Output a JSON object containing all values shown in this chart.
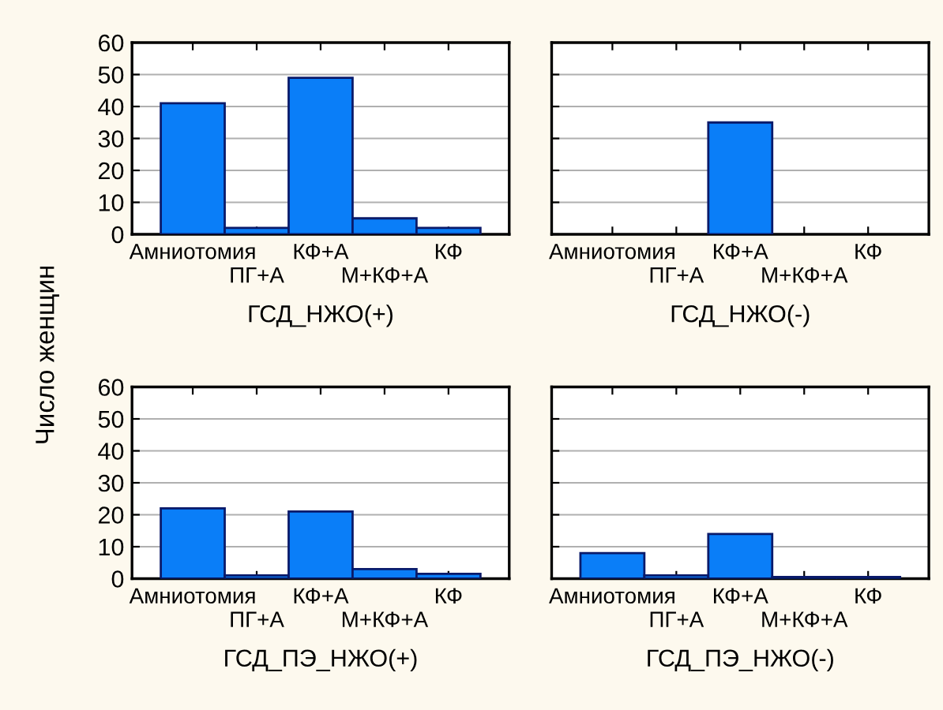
{
  "chart_data": [
    {
      "type": "bar",
      "categories": [
        "Амниотомия",
        "ПГ+А",
        "КФ+А",
        "М+КФ+А",
        "КФ"
      ],
      "values": [
        41,
        2,
        49,
        5,
        2
      ],
      "color": "#0a7ef8",
      "xlabel": "ГСД_НЖО(+)",
      "ylabel": "Число женщин",
      "ylim": [
        0,
        60
      ],
      "yticks": [
        0,
        10,
        20,
        30,
        40,
        50,
        60
      ],
      "grid": "y"
    },
    {
      "type": "bar",
      "categories": [
        "Амниотомия",
        "ПГ+А",
        "КФ+А",
        "М+КФ+А",
        "КФ"
      ],
      "values": [
        0,
        0,
        35,
        0,
        0
      ],
      "color": "#0a7ef8",
      "xlabel": "ГСД_НЖО(-)",
      "ylim": [
        0,
        60
      ],
      "yticks": [
        0,
        10,
        20,
        30,
        40,
        50,
        60
      ],
      "grid": "y",
      "tick_labels": "x"
    },
    {
      "type": "bar",
      "categories": [
        "Амниотомия",
        "ПГ+А",
        "КФ+А",
        "М+КФ+А",
        "КФ"
      ],
      "values": [
        22,
        1,
        21,
        3,
        1.5
      ],
      "color": "#0a7ef8",
      "xlabel": "ГСД_ПЭ_НЖО(+)",
      "ylim": [
        0,
        60
      ],
      "yticks": [
        0,
        10,
        20,
        30,
        40,
        50,
        60
      ],
      "grid": "y"
    },
    {
      "type": "bar",
      "categories": [
        "Амниотомия",
        "ПГ+А",
        "КФ+А",
        "М+КФ+А",
        "КФ"
      ],
      "values": [
        8,
        1,
        14,
        0.5,
        0.5
      ],
      "color": "#0a7ef8",
      "xlabel": "ГСД_ПЭ_НЖО(-)",
      "ylim": [
        0,
        60
      ],
      "yticks": [
        0,
        10,
        20,
        30,
        40,
        50,
        60
      ],
      "grid": "y",
      "tick_labels": "x"
    }
  ]
}
